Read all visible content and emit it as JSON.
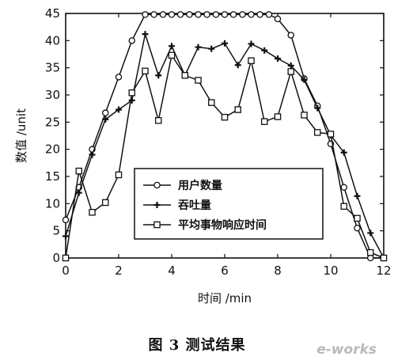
{
  "chart_data": {
    "type": "line",
    "xlabel": "时间 /min",
    "ylabel": "数值 /unit",
    "xlim": [
      0,
      12
    ],
    "ylim": [
      0,
      45
    ],
    "xticks": [
      0,
      2,
      4,
      6,
      8,
      10,
      12
    ],
    "yticks": [
      0,
      5,
      10,
      15,
      20,
      25,
      30,
      35,
      40,
      45
    ],
    "grid": false,
    "legend_position": "lower-center",
    "series": [
      {
        "name": "用户数量",
        "marker": "circle",
        "x": [
          0,
          0.5,
          1,
          1.5,
          2,
          2.5,
          3,
          3.33,
          3.67,
          4,
          4.33,
          4.67,
          5,
          5.33,
          5.67,
          6,
          6.33,
          6.67,
          7,
          7.33,
          7.67,
          8,
          8.5,
          9,
          9.5,
          10,
          10.5,
          11,
          11.5,
          12
        ],
        "y": [
          7,
          13,
          20,
          26.7,
          33.3,
          40,
          44.8,
          44.8,
          44.8,
          44.8,
          44.8,
          44.8,
          44.8,
          44.8,
          44.8,
          44.8,
          44.8,
          44.8,
          44.8,
          44.8,
          44.8,
          44,
          41,
          33,
          28,
          21,
          13,
          5.5,
          0,
          0
        ]
      },
      {
        "name": "吞吐量",
        "marker": "plus",
        "x": [
          0,
          0.5,
          1,
          1.5,
          2,
          2.5,
          3,
          3.5,
          4,
          4.5,
          5,
          5.5,
          6,
          6.5,
          7,
          7.5,
          8,
          8.5,
          9,
          9.5,
          10,
          10.5,
          11,
          11.5,
          12
        ],
        "y": [
          4,
          12,
          19,
          25.5,
          27.3,
          29,
          41.2,
          33.6,
          39,
          33.6,
          38.8,
          38.5,
          39.5,
          35.5,
          39.4,
          38.2,
          36.7,
          35.4,
          32.8,
          27.6,
          22.6,
          19.4,
          11.4,
          4.6,
          0
        ]
      },
      {
        "name": "平均事物响应时间",
        "marker": "square",
        "x": [
          0,
          0.5,
          1,
          1.5,
          2,
          2.5,
          3,
          3.5,
          4,
          4.5,
          5,
          5.5,
          6,
          6.5,
          7,
          7.5,
          8,
          8.5,
          9,
          9.5,
          10,
          10.5,
          11,
          11.5,
          12
        ],
        "y": [
          0,
          16,
          8.4,
          10.2,
          15.3,
          30.4,
          34.4,
          25.3,
          37.3,
          33.6,
          32.7,
          28.6,
          25.9,
          27.3,
          36.3,
          25.1,
          26,
          34.3,
          26.3,
          23.1,
          22.8,
          9.5,
          7.3,
          1,
          0
        ]
      }
    ]
  },
  "caption": "图 3    测试结果",
  "watermark": "e-works"
}
